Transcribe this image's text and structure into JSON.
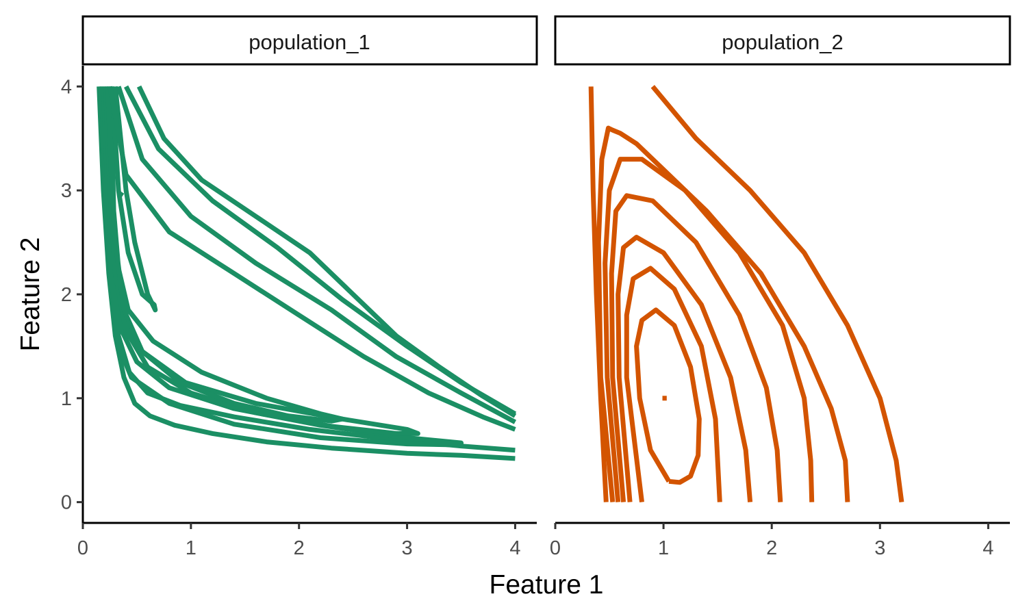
{
  "chart_data": {
    "type": "line",
    "chart_kind": "faceted density contour plot",
    "xlabel": "Feature 1",
    "ylabel": "Feature 2",
    "xlim": [
      0,
      4.2
    ],
    "ylim": [
      -0.2,
      4.2
    ],
    "xticks": [
      0,
      1,
      2,
      3,
      4
    ],
    "yticks": [
      0,
      1,
      2,
      3,
      4
    ],
    "grid": false,
    "legend": "none",
    "facets": [
      {
        "label": "population_1",
        "color": "#1b8f64",
        "series": [
          {
            "x": [
              0.15,
              0.19,
              0.24,
              0.3,
              0.38,
              0.48,
              0.62,
              0.85,
              1.2,
              1.7,
              2.3,
              3.0,
              3.5,
              4.0
            ],
            "y": [
              4.0,
              3.0,
              2.2,
              1.6,
              1.2,
              0.95,
              0.83,
              0.74,
              0.66,
              0.58,
              0.52,
              0.47,
              0.45,
              0.42
            ]
          },
          {
            "x": [
              0.17,
              0.21,
              0.26,
              0.33,
              0.43,
              0.6,
              0.9,
              1.4,
              2.1,
              2.9,
              3.5,
              4.0
            ],
            "y": [
              4.0,
              3.0,
              2.2,
              1.6,
              1.25,
              1.05,
              0.93,
              0.82,
              0.7,
              0.6,
              0.54,
              0.5
            ]
          },
          {
            "x": [
              0.19,
              0.23,
              0.28,
              0.36,
              0.5,
              0.8,
              1.4,
              2.2,
              3.0,
              3.5,
              3.5,
              3.0,
              2.2,
              1.4,
              0.8,
              0.45,
              0.33,
              0.26,
              0.22
            ],
            "y": [
              4.0,
              3.0,
              2.2,
              1.65,
              1.35,
              1.1,
              0.9,
              0.74,
              0.62,
              0.57,
              0.55,
              0.56,
              0.62,
              0.75,
              0.95,
              1.2,
              1.5,
              2.2,
              4.0
            ]
          },
          {
            "x": [
              0.21,
              0.25,
              0.3,
              0.38,
              0.55,
              0.95,
              1.6,
              2.4,
              3.0,
              3.1,
              2.9,
              2.3,
              1.6,
              1.0,
              0.6,
              0.4,
              0.3,
              0.24
            ],
            "y": [
              4.0,
              3.0,
              2.2,
              1.75,
              1.45,
              1.15,
              0.95,
              0.8,
              0.7,
              0.66,
              0.66,
              0.73,
              0.86,
              1.05,
              1.3,
              1.65,
              2.3,
              4.0
            ]
          },
          {
            "x": [
              0.23,
              0.27,
              0.33,
              0.42,
              0.65,
              1.1,
              1.7,
              2.2,
              2.4,
              2.3,
              1.9,
              1.4,
              0.9,
              0.55,
              0.38,
              0.29,
              0.26
            ],
            "y": [
              4.0,
              3.0,
              2.25,
              1.85,
              1.55,
              1.25,
              1.0,
              0.85,
              0.8,
              0.78,
              0.83,
              0.95,
              1.15,
              1.45,
              1.85,
              2.6,
              4.0
            ]
          },
          {
            "x": [
              0.27,
              0.33,
              0.42,
              0.55,
              0.66,
              0.67,
              0.6,
              0.48,
              0.4,
              0.34,
              0.3
            ],
            "y": [
              4.0,
              3.0,
              2.4,
              2.0,
              1.9,
              1.85,
              2.0,
              2.5,
              3.0,
              3.6,
              4.0
            ]
          },
          {
            "x": [
              0.25,
              0.4,
              0.8,
              1.4,
              2.0,
              2.6,
              3.2,
              3.7,
              4.0
            ],
            "y": [
              4.0,
              3.15,
              2.6,
              2.2,
              1.8,
              1.4,
              1.05,
              0.82,
              0.7
            ]
          },
          {
            "x": [
              0.33,
              0.55,
              1.0,
              1.6,
              2.3,
              2.9,
              3.5,
              4.0
            ],
            "y": [
              4.0,
              3.3,
              2.75,
              2.3,
              1.85,
              1.4,
              1.05,
              0.77
            ]
          },
          {
            "x": [
              0.4,
              0.7,
              1.2,
              1.8,
              2.4,
              3.0,
              3.5,
              4.0
            ],
            "y": [
              4.0,
              3.4,
              2.9,
              2.45,
              1.95,
              1.5,
              1.15,
              0.85
            ]
          },
          {
            "x": [
              0.52,
              0.75,
              1.1,
              1.6,
              2.1,
              2.5,
              2.9,
              3.3,
              3.7,
              4.0
            ],
            "y": [
              4.0,
              3.5,
              3.1,
              2.75,
              2.4,
              2.0,
              1.6,
              1.3,
              1.02,
              0.83
            ]
          },
          {
            "x": [
              0.34,
              0.37
            ],
            "y": [
              2.97,
              2.95
            ]
          }
        ]
      },
      {
        "label": "population_2",
        "color": "#d35400",
        "series": [
          {
            "x": [
              0.33,
              0.35,
              0.38,
              0.42,
              0.45,
              0.47
            ],
            "y": [
              4.0,
              3.0,
              2.0,
              1.0,
              0.4,
              0.0
            ]
          },
          {
            "x": [
              0.9,
              1.3,
              1.8,
              2.3,
              2.7,
              3.0,
              3.15,
              3.2
            ],
            "y": [
              4.0,
              3.5,
              3.0,
              2.4,
              1.7,
              1.0,
              0.4,
              0.0
            ]
          },
          {
            "x": [
              0.53,
              0.42,
              0.4,
              0.43,
              0.49,
              0.53
            ],
            "y": [
              0.0,
              1.2,
              2.5,
              3.3,
              3.6,
              3.58
            ],
            "upper": {
              "x": [
                0.53,
                0.6,
                0.75,
                1.0,
                1.4,
                1.9,
                2.3,
                2.55,
                2.68,
                2.7
              ],
              "y": [
                3.58,
                3.55,
                3.45,
                3.2,
                2.8,
                2.2,
                1.5,
                0.9,
                0.4,
                0.0
              ]
            }
          },
          {
            "x": [
              0.58,
              0.48,
              0.46,
              0.5,
              0.6,
              0.8,
              1.2,
              1.7,
              2.1,
              2.3,
              2.36,
              2.37
            ],
            "y": [
              0.0,
              1.2,
              2.3,
              3.0,
              3.3,
              3.3,
              3.0,
              2.4,
              1.7,
              1.0,
              0.4,
              0.0
            ]
          },
          {
            "x": [
              0.63,
              0.53,
              0.52,
              0.56,
              0.66,
              0.9,
              1.3,
              1.7,
              1.95,
              2.05,
              2.08
            ],
            "y": [
              0.0,
              1.2,
              2.2,
              2.8,
              2.95,
              2.9,
              2.5,
              1.8,
              1.1,
              0.5,
              0.0
            ]
          },
          {
            "x": [
              0.69,
              0.59,
              0.58,
              0.63,
              0.75,
              1.0,
              1.35,
              1.62,
              1.76,
              1.8
            ],
            "y": [
              0.0,
              1.2,
              2.0,
              2.45,
              2.55,
              2.4,
              1.9,
              1.2,
              0.5,
              0.0
            ]
          },
          {
            "x": [
              0.8,
              0.66,
              0.66,
              0.72,
              0.88,
              1.1,
              1.35,
              1.48,
              1.52
            ],
            "y": [
              0.0,
              1.2,
              1.8,
              2.15,
              2.25,
              2.05,
              1.5,
              0.8,
              0.0
            ]
          },
          {
            "x": [
              1.05,
              0.88,
              0.78,
              0.75,
              0.8,
              0.93,
              1.1,
              1.25,
              1.33,
              1.32,
              1.25,
              1.15,
              1.05
            ],
            "y": [
              0.2,
              0.5,
              1.0,
              1.5,
              1.75,
              1.85,
              1.7,
              1.3,
              0.8,
              0.45,
              0.25,
              0.19,
              0.2
            ]
          },
          {
            "x": [
              0.99,
              1.03
            ],
            "y": [
              1.0,
              1.0
            ]
          }
        ]
      }
    ]
  }
}
